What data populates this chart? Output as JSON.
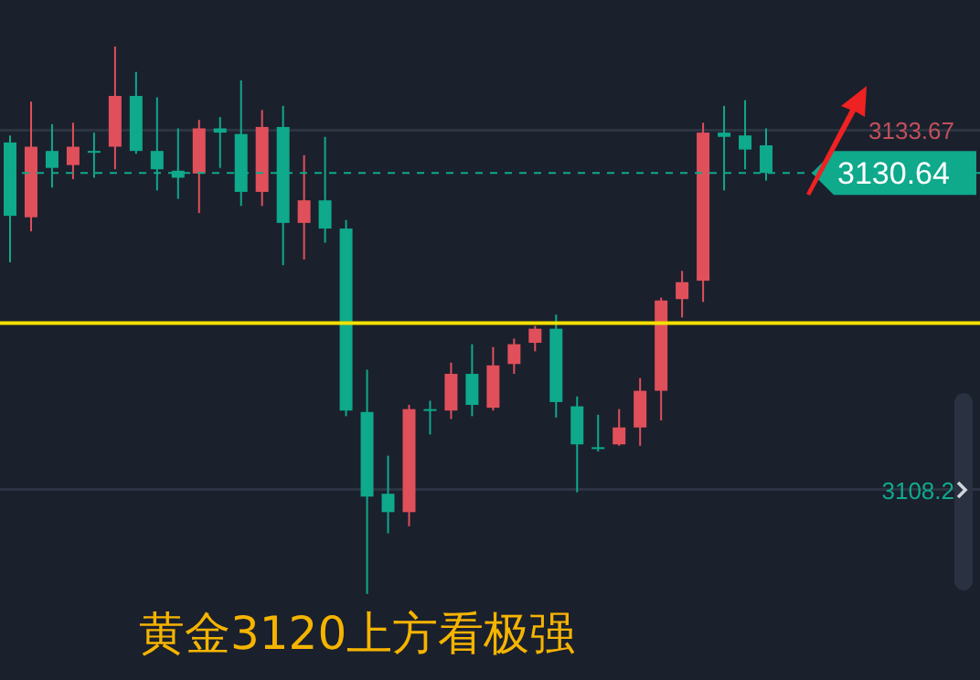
{
  "chart_data": {
    "type": "candlestick",
    "categories": [
      null,
      null,
      null,
      null,
      null,
      null,
      null,
      null,
      null,
      null,
      null,
      null,
      null,
      null,
      null,
      null,
      null,
      null,
      null,
      null,
      null,
      null,
      null,
      null,
      null,
      null,
      null,
      null,
      null,
      null,
      null,
      null,
      null,
      null,
      null,
      null,
      null
    ],
    "ohlc": [
      [
        3132.8,
        3133.3,
        3124.3,
        3127.6
      ],
      [
        3127.5,
        3135.7,
        3126.5,
        3132.5
      ],
      [
        3132.2,
        3134.1,
        3129.6,
        3131.0
      ],
      [
        3131.2,
        3134.2,
        3130.2,
        3132.5
      ],
      [
        3132.2,
        3133.5,
        3130.3,
        3132.2
      ],
      [
        3132.5,
        3139.6,
        3130.9,
        3136.1
      ],
      [
        3136.1,
        3137.8,
        3132.0,
        3132.2
      ],
      [
        3132.2,
        3136.0,
        3129.4,
        3130.9
      ],
      [
        3130.8,
        3133.8,
        3128.8,
        3130.3
      ],
      [
        3130.6,
        3134.4,
        3127.8,
        3133.8
      ],
      [
        3133.8,
        3134.6,
        3131.0,
        3133.5
      ],
      [
        3133.4,
        3137.2,
        3128.3,
        3129.3
      ],
      [
        3129.3,
        3135.1,
        3128.3,
        3133.9
      ],
      [
        3133.9,
        3135.4,
        3124.1,
        3127.1
      ],
      [
        3127.1,
        3131.9,
        3124.5,
        3128.7
      ],
      [
        3128.7,
        3133.2,
        3125.7,
        3126.7
      ],
      [
        3126.7,
        3127.3,
        3113.4,
        3113.8
      ],
      [
        3113.7,
        3116.7,
        3100.8,
        3107.7
      ],
      [
        3107.9,
        3110.6,
        3105.1,
        3106.6
      ],
      [
        3106.6,
        3114.2,
        3105.6,
        3113.9
      ],
      [
        3113.9,
        3114.5,
        3112.1,
        3113.9
      ],
      [
        3113.8,
        3117.2,
        3113.2,
        3116.4
      ],
      [
        3116.4,
        3118.5,
        3113.4,
        3114.2
      ],
      [
        3114.0,
        3118.3,
        3113.8,
        3117.0
      ],
      [
        3117.1,
        3118.9,
        3116.4,
        3118.5
      ],
      [
        3118.6,
        3119.8,
        3118.0,
        3119.6
      ],
      [
        3119.6,
        3120.6,
        3113.3,
        3114.4
      ],
      [
        3114.1,
        3114.8,
        3108.0,
        3111.4
      ],
      [
        3111.2,
        3113.5,
        3110.9,
        3111.2
      ],
      [
        3111.4,
        3113.9,
        3111.3,
        3112.6
      ],
      [
        3112.6,
        3116.1,
        3111.3,
        3115.2
      ],
      [
        3115.2,
        3121.8,
        3113.1,
        3121.6
      ],
      [
        3121.7,
        3123.7,
        3120.4,
        3122.9
      ],
      [
        3123.0,
        3134.2,
        3121.5,
        3133.5
      ],
      [
        3133.5,
        3135.4,
        3129.4,
        3133.2
      ],
      [
        3133.3,
        3135.8,
        3130.9,
        3132.3
      ],
      [
        3132.6,
        3133.8,
        3130.1,
        3130.64
      ]
    ],
    "colors": [
      "#0fa98c",
      "#e0505a",
      "#0fa98c",
      "#e0505a",
      "#0fa98c",
      "#e0505a",
      "#0fa98c",
      "#0fa98c",
      "#0fa98c",
      "#e0505a",
      "#0fa98c",
      "#0fa98c",
      "#e0505a",
      "#0fa98c",
      "#e0505a",
      "#0fa98c",
      "#0fa98c",
      "#0fa98c",
      "#0fa98c",
      "#e0505a",
      "#0fa98c",
      "#e0505a",
      "#0fa98c",
      "#e0505a",
      "#e0505a",
      "#e0505a",
      "#0fa98c",
      "#0fa98c",
      "#0fa98c",
      "#e0505a",
      "#e0505a",
      "#e0505a",
      "#e0505a",
      "#e0505a",
      "#0fa98c",
      "#0fa98c",
      "#0fa98c"
    ],
    "ylim": [
      3094.7,
      3142.9
    ],
    "yticks": [
      {
        "value": 3108.2,
        "label": "3108.2"
      },
      {
        "value": 3133.67,
        "label": "3133.67"
      }
    ],
    "grid": "y",
    "tick_labels": "y",
    "ref_lines": [
      {
        "axis": "y",
        "value": 3120,
        "color": "#f5e000",
        "line_style": "solid"
      },
      {
        "axis": "y",
        "value": 3130.64,
        "label": "3130.64",
        "color": "#0fa98c",
        "line_style": "dashed"
      }
    ],
    "annotations": [
      "黄金3120上方看极强"
    ]
  }
}
